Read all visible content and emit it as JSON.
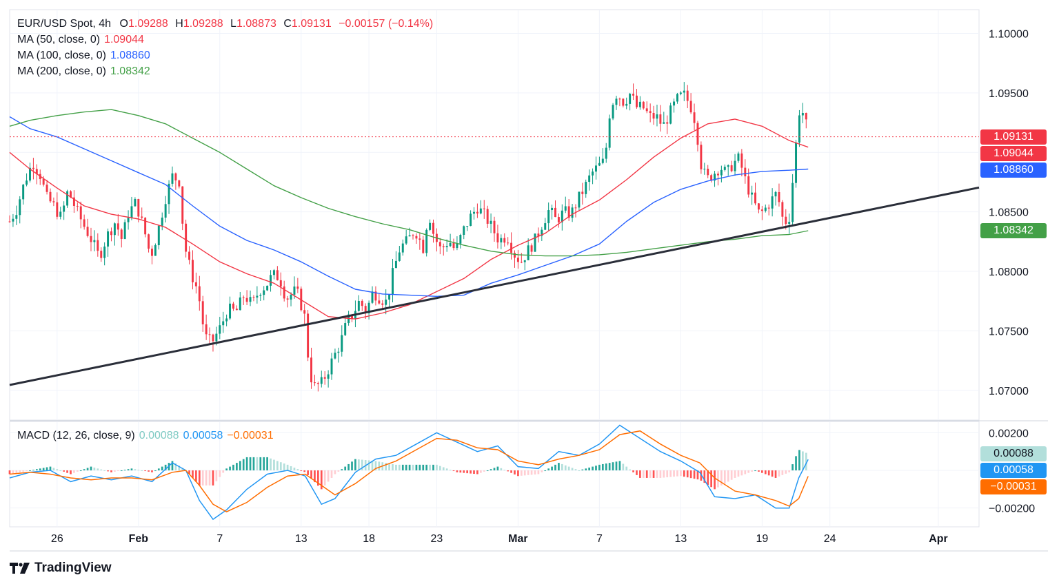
{
  "header": {
    "symbol": "EUR/USD Spot, 4h",
    "open_label": "O",
    "open": "1.09288",
    "high_label": "H",
    "high": "1.09288",
    "low_label": "L",
    "low": "1.08873",
    "close_label": "C",
    "close": "1.09131",
    "change": "−0.00157 (−0.14%)"
  },
  "ma_legend": [
    {
      "label": "MA (50, close, 0)",
      "value": "1.09044",
      "color": "#f23645"
    },
    {
      "label": "MA (100, close, 0)",
      "value": "1.08860",
      "color": "#2962ff"
    },
    {
      "label": "MA (200, close, 0)",
      "value": "1.08342",
      "color": "#43a047"
    }
  ],
  "macd_legend": {
    "label": "MACD (12, 26, close, 9)",
    "hist": "0.00088",
    "macd": "0.00058",
    "signal": "−0.00031"
  },
  "price_pills": [
    {
      "text": "1.09131",
      "color": "#f23645",
      "price": 1.09131
    },
    {
      "text": "1.09044",
      "color": "#f23645",
      "price": 1.09044
    },
    {
      "text": "1.08860",
      "color": "#2962ff",
      "price": 1.0886
    },
    {
      "text": "1.08342",
      "color": "#43a047",
      "price": 1.08342
    }
  ],
  "macd_pills": [
    {
      "text": "0.00088",
      "color": "#b2dfdb",
      "text_color": "#131722",
      "value": 0.00088
    },
    {
      "text": "0.00058",
      "color": "#2196f3",
      "text_color": "#ffffff",
      "value": 0.00058
    },
    {
      "text": "−0.00031",
      "color": "#ff6d00",
      "text_color": "#ffffff",
      "value": -0.00031
    }
  ],
  "brand": "TradingView",
  "colors": {
    "up": "#089981",
    "down": "#f23645",
    "ma50": "#f23645",
    "ma100": "#2962ff",
    "ma200": "#43a047",
    "macd": "#2196f3",
    "signal": "#ff6d00",
    "trendline": "#2a2e39"
  },
  "chart_data": {
    "type": "candlestick",
    "title": "EUR/USD Spot, 4h",
    "y_ticks": [
      "1.10000",
      "1.09500",
      "1.09000",
      "1.08500",
      "1.08000",
      "1.07500",
      "1.07000"
    ],
    "ylim": [
      1.0675,
      1.102
    ],
    "x_ticks": [
      {
        "label": "26",
        "day": 26
      },
      {
        "label": "Feb",
        "day": 32,
        "bold": true
      },
      {
        "label": "7",
        "day": 38
      },
      {
        "label": "13",
        "day": 44
      },
      {
        "label": "18",
        "day": 49
      },
      {
        "label": "23",
        "day": 54
      },
      {
        "label": "Mar",
        "day": 60,
        "bold": true
      },
      {
        "label": "7",
        "day": 66
      },
      {
        "label": "13",
        "day": 72
      },
      {
        "label": "19",
        "day": 78
      },
      {
        "label": "24",
        "day": 83
      },
      {
        "label": "Apr",
        "day": 91,
        "bold": true
      }
    ],
    "x_range_days": [
      22.5,
      94
    ],
    "last_close": 1.09131,
    "price_path": [
      [
        22.5,
        1.0842
      ],
      [
        23.0,
        1.0852
      ],
      [
        23.6,
        1.0875
      ],
      [
        24.2,
        1.0892
      ],
      [
        24.8,
        1.088
      ],
      [
        25.2,
        1.0862
      ],
      [
        25.7,
        1.0856
      ],
      [
        26.3,
        1.0845
      ],
      [
        26.8,
        1.0868
      ],
      [
        27.4,
        1.0852
      ],
      [
        28.0,
        1.0838
      ],
      [
        28.6,
        1.0825
      ],
      [
        29.1,
        1.0812
      ],
      [
        29.7,
        1.083
      ],
      [
        30.3,
        1.0842
      ],
      [
        30.8,
        1.0826
      ],
      [
        31.2,
        1.0848
      ],
      [
        31.8,
        1.0858
      ],
      [
        32.4,
        1.0836
      ],
      [
        32.9,
        1.0812
      ],
      [
        33.4,
        1.0832
      ],
      [
        34.0,
        1.0862
      ],
      [
        34.5,
        1.088
      ],
      [
        35.0,
        1.0876
      ],
      [
        35.4,
        1.0822
      ],
      [
        35.9,
        1.0798
      ],
      [
        36.4,
        1.0783
      ],
      [
        36.9,
        1.0745
      ],
      [
        37.4,
        1.074
      ],
      [
        38.0,
        1.0752
      ],
      [
        38.6,
        1.0768
      ],
      [
        39.2,
        1.0766
      ],
      [
        39.8,
        1.078
      ],
      [
        40.4,
        1.0772
      ],
      [
        40.9,
        1.0784
      ],
      [
        41.4,
        1.0788
      ],
      [
        41.9,
        1.0797
      ],
      [
        42.4,
        1.0795
      ],
      [
        42.9,
        1.0777
      ],
      [
        43.5,
        1.0783
      ],
      [
        43.8,
        1.078
      ],
      [
        44.3,
        1.076
      ],
      [
        44.6,
        1.0715
      ],
      [
        45.0,
        1.0703
      ],
      [
        45.5,
        1.0706
      ],
      [
        45.9,
        1.0715
      ],
      [
        46.4,
        1.0728
      ],
      [
        46.9,
        1.074
      ],
      [
        47.4,
        1.0758
      ],
      [
        47.8,
        1.0764
      ],
      [
        48.3,
        1.0775
      ],
      [
        48.8,
        1.0766
      ],
      [
        49.3,
        1.0783
      ],
      [
        49.8,
        1.0778
      ],
      [
        50.3,
        1.0774
      ],
      [
        50.8,
        1.08
      ],
      [
        51.3,
        1.082
      ],
      [
        51.8,
        1.0825
      ],
      [
        52.4,
        1.0835
      ],
      [
        53.0,
        1.082
      ],
      [
        53.4,
        1.085
      ],
      [
        53.8,
        1.083
      ],
      [
        54.3,
        1.0818
      ],
      [
        54.9,
        1.0826
      ],
      [
        55.4,
        1.0817
      ],
      [
        55.9,
        1.0833
      ],
      [
        56.5,
        1.0846
      ],
      [
        57.0,
        1.0854
      ],
      [
        57.6,
        1.0846
      ],
      [
        58.1,
        1.0836
      ],
      [
        58.6,
        1.0826
      ],
      [
        59.2,
        1.083
      ],
      [
        59.7,
        1.0815
      ],
      [
        60.2,
        1.0808
      ],
      [
        60.7,
        1.0817
      ],
      [
        61.2,
        1.0825
      ],
      [
        61.7,
        1.0838
      ],
      [
        62.3,
        1.0852
      ],
      [
        62.8,
        1.0843
      ],
      [
        63.4,
        1.085
      ],
      [
        63.9,
        1.0848
      ],
      [
        64.4,
        1.086
      ],
      [
        64.9,
        1.087
      ],
      [
        65.4,
        1.0882
      ],
      [
        65.9,
        1.0888
      ],
      [
        66.4,
        1.0893
      ],
      [
        66.8,
        1.0938
      ],
      [
        67.3,
        1.095
      ],
      [
        67.8,
        1.0942
      ],
      [
        68.3,
        1.095
      ],
      [
        68.7,
        1.0938
      ],
      [
        69.2,
        1.0938
      ],
      [
        69.7,
        1.093
      ],
      [
        70.2,
        1.093
      ],
      [
        70.7,
        1.0922
      ],
      [
        71.2,
        1.0933
      ],
      [
        71.7,
        1.0944
      ],
      [
        72.2,
        1.0949
      ],
      [
        72.7,
        1.094
      ],
      [
        73.1,
        1.0925
      ],
      [
        73.5,
        1.089
      ],
      [
        73.9,
        1.0877
      ],
      [
        74.4,
        1.0882
      ],
      [
        74.9,
        1.0888
      ],
      [
        75.4,
        1.0882
      ],
      [
        75.8,
        1.089
      ],
      [
        76.3,
        1.0895
      ],
      [
        76.8,
        1.0875
      ],
      [
        77.3,
        1.086
      ],
      [
        77.8,
        1.0848
      ],
      [
        78.2,
        1.0852
      ],
      [
        78.7,
        1.086
      ],
      [
        79.1,
        1.0866
      ],
      [
        79.6,
        1.084
      ],
      [
        80.0,
        1.0846
      ],
      [
        80.4,
        1.0893
      ],
      [
        80.7,
        1.0935
      ],
      [
        81.1,
        1.0933
      ],
      [
        81.4,
        1.0913
      ]
    ],
    "series": [
      {
        "name": "MA (50, close, 0)",
        "color": "#f23645",
        "points": [
          [
            22.5,
            1.09
          ],
          [
            24.0,
            1.0886
          ],
          [
            26.0,
            1.087
          ],
          [
            28.0,
            1.0855
          ],
          [
            30.0,
            1.0848
          ],
          [
            32.0,
            1.0844
          ],
          [
            34.0,
            1.0837
          ],
          [
            36.0,
            1.0823
          ],
          [
            38.0,
            1.0808
          ],
          [
            40.0,
            1.0798
          ],
          [
            42.0,
            1.079
          ],
          [
            44.0,
            1.0776
          ],
          [
            46.0,
            1.0762
          ],
          [
            48.0,
            1.076
          ],
          [
            50.0,
            1.0765
          ],
          [
            52.0,
            1.0772
          ],
          [
            54.0,
            1.0783
          ],
          [
            56.0,
            1.0794
          ],
          [
            58.0,
            1.081
          ],
          [
            60.0,
            1.0822
          ],
          [
            62.0,
            1.0832
          ],
          [
            64.0,
            1.0848
          ],
          [
            66.0,
            1.086
          ],
          [
            68.0,
            1.0877
          ],
          [
            70.0,
            1.0896
          ],
          [
            72.0,
            1.0912
          ],
          [
            74.0,
            1.0924
          ],
          [
            76.0,
            1.0928
          ],
          [
            78.0,
            1.0922
          ],
          [
            80.0,
            1.091
          ],
          [
            81.4,
            1.09044
          ]
        ]
      },
      {
        "name": "MA (100, close, 0)",
        "color": "#2962ff",
        "points": [
          [
            22.5,
            1.093
          ],
          [
            24.0,
            1.092
          ],
          [
            26.0,
            1.0913
          ],
          [
            28.0,
            1.0903
          ],
          [
            30.0,
            1.0893
          ],
          [
            32.0,
            1.0883
          ],
          [
            34.0,
            1.0873
          ],
          [
            36.0,
            1.0855
          ],
          [
            38.0,
            1.0838
          ],
          [
            40.0,
            1.0826
          ],
          [
            42.0,
            1.0818
          ],
          [
            44.0,
            1.0808
          ],
          [
            46.0,
            1.0796
          ],
          [
            48.0,
            1.0785
          ],
          [
            50.0,
            1.0781
          ],
          [
            52.0,
            1.078
          ],
          [
            54.0,
            1.0779
          ],
          [
            56.0,
            1.078
          ],
          [
            58.0,
            1.079
          ],
          [
            60.0,
            1.0797
          ],
          [
            62.0,
            1.0805
          ],
          [
            64.0,
            1.0813
          ],
          [
            66.0,
            1.0823
          ],
          [
            68.0,
            1.0842
          ],
          [
            70.0,
            1.0858
          ],
          [
            72.0,
            1.0869
          ],
          [
            74.0,
            1.0876
          ],
          [
            76.0,
            1.0881
          ],
          [
            78.0,
            1.0884
          ],
          [
            80.0,
            1.0885
          ],
          [
            81.4,
            1.0886
          ]
        ]
      },
      {
        "name": "MA (200, close, 0)",
        "color": "#43a047",
        "points": [
          [
            22.5,
            1.0922
          ],
          [
            24.0,
            1.0927
          ],
          [
            26.0,
            1.0931
          ],
          [
            28.0,
            1.0934
          ],
          [
            30.0,
            1.0936
          ],
          [
            32.0,
            1.0931
          ],
          [
            34.0,
            1.0924
          ],
          [
            36.0,
            1.0912
          ],
          [
            38.0,
            1.09
          ],
          [
            40.0,
            1.0886
          ],
          [
            42.0,
            1.0872
          ],
          [
            44.0,
            1.0862
          ],
          [
            46.0,
            1.0853
          ],
          [
            48.0,
            1.0846
          ],
          [
            50.0,
            1.084
          ],
          [
            52.0,
            1.0835
          ],
          [
            54.0,
            1.0828
          ],
          [
            56.0,
            1.0822
          ],
          [
            58.0,
            1.0817
          ],
          [
            60.0,
            1.0814
          ],
          [
            62.0,
            1.0813
          ],
          [
            64.0,
            1.0813
          ],
          [
            66.0,
            1.0814
          ],
          [
            68.0,
            1.0816
          ],
          [
            70.0,
            1.0819
          ],
          [
            72.0,
            1.0822
          ],
          [
            74.0,
            1.0825
          ],
          [
            76.0,
            1.0827
          ],
          [
            78.0,
            1.083
          ],
          [
            80.0,
            1.0831
          ],
          [
            81.4,
            1.08342
          ]
        ]
      },
      {
        "name": "trendline",
        "color": "#2a2e39",
        "points": [
          [
            22.5,
            1.07045
          ],
          [
            94.0,
            1.08705
          ]
        ]
      }
    ],
    "macd": {
      "name": "MACD (12, 26, close, 9)",
      "y_ticks": [
        "0.00200",
        "−0.00200"
      ],
      "ylim": [
        -0.003,
        0.0026
      ],
      "macd_line": [
        [
          22.5,
          -0.0004
        ],
        [
          24.0,
          -0.0001
        ],
        [
          25.5,
          0.0
        ],
        [
          27.0,
          -0.0006
        ],
        [
          28.5,
          -0.0003
        ],
        [
          30.0,
          -0.0005
        ],
        [
          31.5,
          -0.0003
        ],
        [
          33.0,
          -0.0006
        ],
        [
          34.5,
          0.0004
        ],
        [
          35.5,
          0.0
        ],
        [
          36.5,
          -0.0016
        ],
        [
          37.5,
          -0.0026
        ],
        [
          38.5,
          -0.0021
        ],
        [
          40.0,
          -0.001
        ],
        [
          41.5,
          -0.0002
        ],
        [
          43.0,
          0.0
        ],
        [
          44.3,
          -0.0003
        ],
        [
          45.5,
          -0.0018
        ],
        [
          46.5,
          -0.0015
        ],
        [
          48.0,
          -0.0001
        ],
        [
          49.5,
          0.0006
        ],
        [
          51.0,
          0.0008
        ],
        [
          52.5,
          0.0014
        ],
        [
          54.0,
          0.002
        ],
        [
          55.5,
          0.0015
        ],
        [
          57.0,
          0.001
        ],
        [
          58.5,
          0.0013
        ],
        [
          60.0,
          0.0002
        ],
        [
          61.5,
          0.0001
        ],
        [
          63.0,
          0.001
        ],
        [
          64.5,
          0.0008
        ],
        [
          66.0,
          0.0014
        ],
        [
          67.5,
          0.0024
        ],
        [
          69.0,
          0.0017
        ],
        [
          70.5,
          0.001
        ],
        [
          72.0,
          0.0005
        ],
        [
          73.4,
          -0.0001
        ],
        [
          74.5,
          -0.0014
        ],
        [
          76.0,
          -0.0015
        ],
        [
          77.5,
          -0.0013
        ],
        [
          79.0,
          -0.002
        ],
        [
          80.0,
          -0.002
        ],
        [
          80.7,
          -0.0004
        ],
        [
          81.4,
          0.00058
        ]
      ],
      "signal_line": [
        [
          22.5,
          -0.0002
        ],
        [
          24.0,
          -0.0001
        ],
        [
          25.5,
          -0.0002
        ],
        [
          27.0,
          -0.0004
        ],
        [
          28.5,
          -0.0005
        ],
        [
          30.0,
          -0.0004
        ],
        [
          31.5,
          -0.0004
        ],
        [
          33.0,
          -0.0005
        ],
        [
          34.5,
          -0.0001
        ],
        [
          35.5,
          0.0
        ],
        [
          36.5,
          -0.0008
        ],
        [
          37.5,
          -0.0018
        ],
        [
          38.5,
          -0.0022
        ],
        [
          40.0,
          -0.0017
        ],
        [
          41.5,
          -0.0009
        ],
        [
          43.0,
          -0.0003
        ],
        [
          44.3,
          -0.0002
        ],
        [
          45.5,
          -0.0008
        ],
        [
          46.5,
          -0.0013
        ],
        [
          48.0,
          -0.0007
        ],
        [
          49.5,
          0.0001
        ],
        [
          51.0,
          0.0005
        ],
        [
          52.5,
          0.0011
        ],
        [
          54.0,
          0.0017
        ],
        [
          55.5,
          0.0016
        ],
        [
          57.0,
          0.0012
        ],
        [
          58.5,
          0.0011
        ],
        [
          60.0,
          0.0005
        ],
        [
          61.5,
          0.0003
        ],
        [
          63.0,
          0.0006
        ],
        [
          64.5,
          0.0008
        ],
        [
          66.0,
          0.0011
        ],
        [
          67.5,
          0.0019
        ],
        [
          69.0,
          0.0021
        ],
        [
          70.5,
          0.0014
        ],
        [
          72.0,
          0.0008
        ],
        [
          73.4,
          0.0004
        ],
        [
          74.5,
          -0.0004
        ],
        [
          76.0,
          -0.0011
        ],
        [
          77.5,
          -0.0013
        ],
        [
          79.0,
          -0.0016
        ],
        [
          80.0,
          -0.0019
        ],
        [
          80.7,
          -0.0015
        ],
        [
          81.4,
          -0.00031
        ]
      ]
    }
  }
}
